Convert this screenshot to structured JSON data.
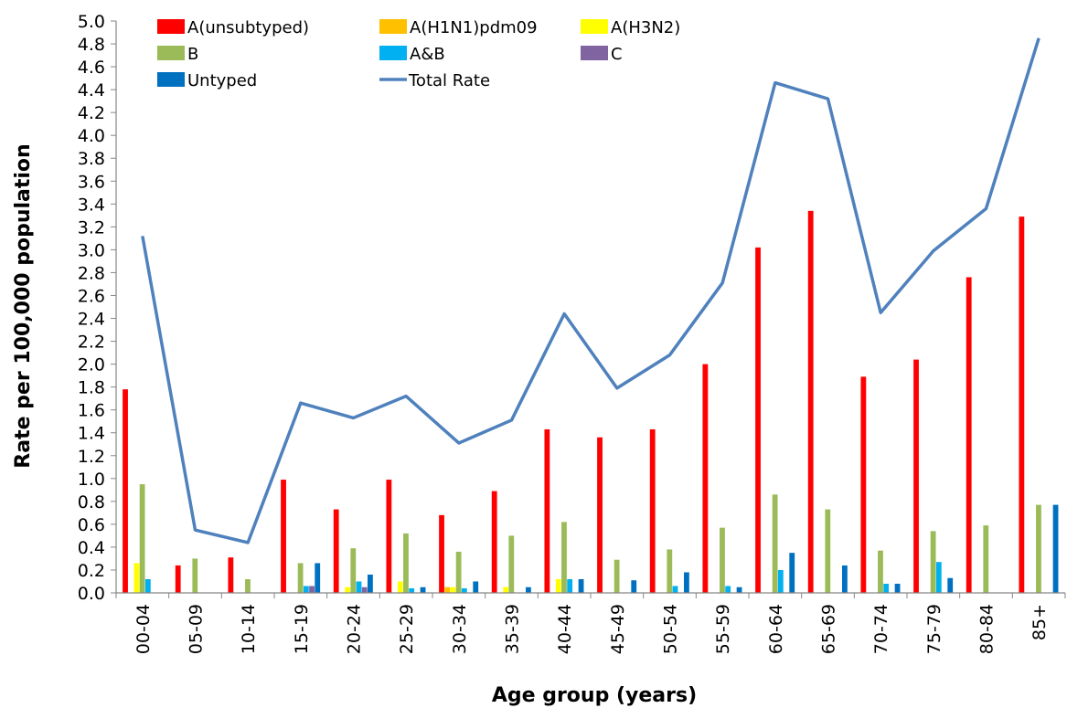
{
  "chart_data": {
    "type": "bar",
    "xlabel": "Age group (years)",
    "ylabel": "Rate per 100,000 population",
    "ylim": [
      0,
      5.0
    ],
    "ytick_step": 0.2,
    "grid": false,
    "legend_position": "top-left",
    "categories": [
      "00-04",
      "05-09",
      "10-14",
      "15-19",
      "20-24",
      "25-29",
      "30-34",
      "35-39",
      "40-44",
      "45-49",
      "50-54",
      "55-59",
      "60-64",
      "65-69",
      "70-74",
      "75-79",
      "80-84",
      "85+"
    ],
    "series": [
      {
        "name": "A(unsubtyped)",
        "type": "bar",
        "color": "#ff0000",
        "values": [
          1.78,
          0.24,
          0.31,
          0.99,
          0.73,
          0.99,
          0.68,
          0.89,
          1.43,
          1.36,
          1.43,
          2.0,
          3.02,
          3.34,
          1.89,
          2.04,
          2.76,
          3.29
        ]
      },
      {
        "name": "A(H1N1)pdm09",
        "type": "bar",
        "color": "#ffc000",
        "values": [
          0,
          0,
          0,
          0,
          0,
          0,
          0.05,
          0,
          0,
          0,
          0,
          0,
          0,
          0,
          0,
          0,
          0,
          0
        ]
      },
      {
        "name": "A(H3N2)",
        "type": "bar",
        "color": "#ffff00",
        "values": [
          0.26,
          0,
          0,
          0,
          0.05,
          0.1,
          0.05,
          0.05,
          0.12,
          0,
          0,
          0,
          0,
          0,
          0,
          0,
          0,
          0
        ]
      },
      {
        "name": "B",
        "type": "bar",
        "color": "#9bbb59",
        "values": [
          0.95,
          0.3,
          0.12,
          0.26,
          0.39,
          0.52,
          0.36,
          0.5,
          0.62,
          0.29,
          0.38,
          0.57,
          0.86,
          0.73,
          0.37,
          0.54,
          0.59,
          0.77
        ]
      },
      {
        "name": "A&B",
        "type": "bar",
        "color": "#00b0f0",
        "values": [
          0.12,
          0,
          0,
          0.06,
          0.1,
          0.04,
          0.04,
          0,
          0.12,
          0,
          0.06,
          0.06,
          0.2,
          0,
          0.08,
          0.27,
          0,
          0
        ]
      },
      {
        "name": "C",
        "type": "bar",
        "color": "#8064a2",
        "values": [
          0,
          0,
          0,
          0.06,
          0.05,
          0,
          0,
          0,
          0,
          0,
          0,
          0,
          0,
          0,
          0,
          0,
          0,
          0
        ]
      },
      {
        "name": "Untyped",
        "type": "bar",
        "color": "#0070c0",
        "values": [
          0,
          0,
          0,
          0.26,
          0.16,
          0.05,
          0.1,
          0.05,
          0.12,
          0.11,
          0.18,
          0.05,
          0.35,
          0.24,
          0.08,
          0.13,
          0,
          0.77
        ]
      },
      {
        "name": "Total Rate",
        "type": "line",
        "color": "#4f81bd",
        "values": [
          3.12,
          0.55,
          0.44,
          1.66,
          1.53,
          1.72,
          1.31,
          1.51,
          2.44,
          1.79,
          2.08,
          2.71,
          4.46,
          4.32,
          2.45,
          2.99,
          3.36,
          4.85
        ]
      }
    ]
  }
}
